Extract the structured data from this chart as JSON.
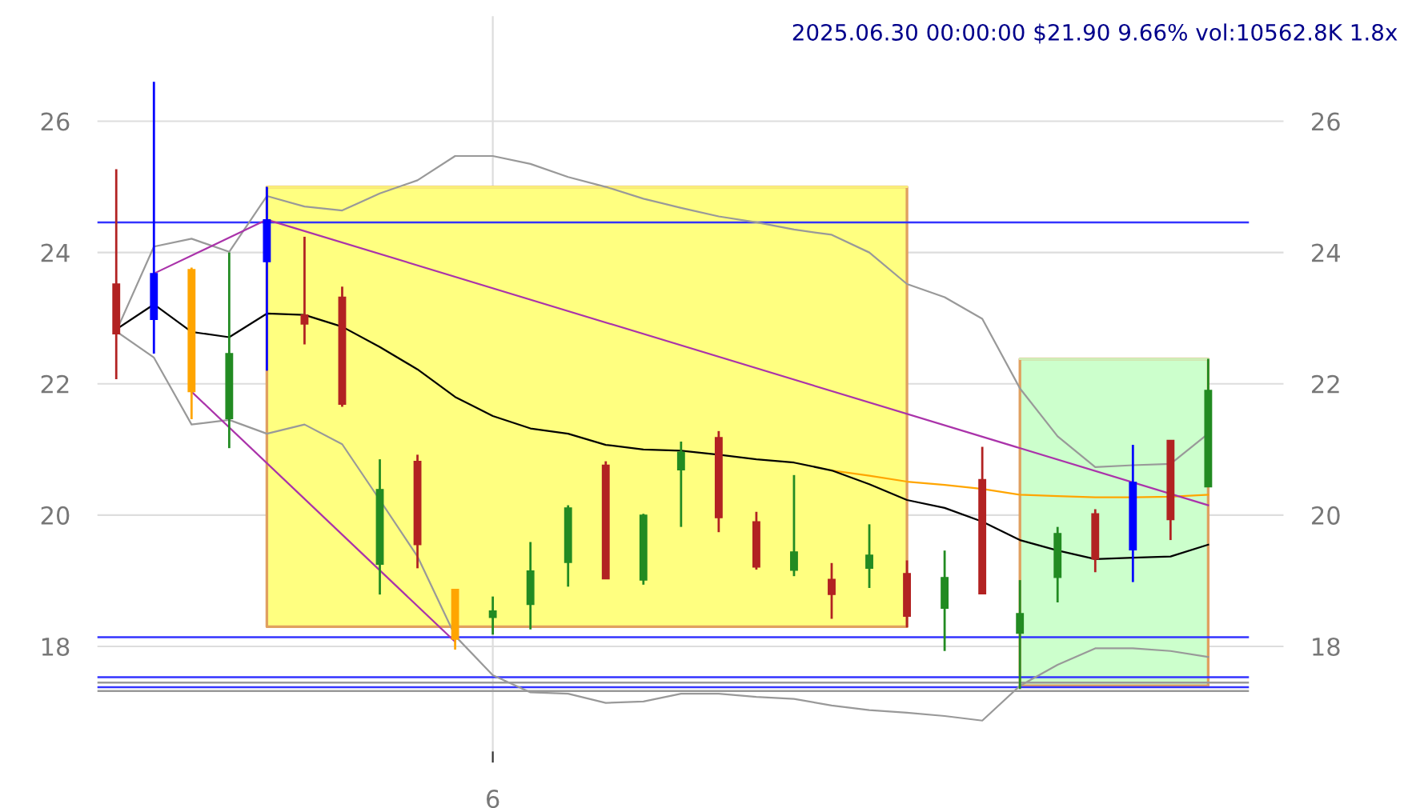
{
  "chart_data": {
    "type": "candlestick",
    "title": "2025.06.30 00:00:00 $21.90 9.66% vol:10562.8K 1.8x",
    "categories": [
      null,
      null,
      null,
      null,
      null,
      null,
      null,
      null,
      null,
      null,
      "6",
      null,
      null,
      null,
      null,
      null,
      null,
      null,
      null,
      null,
      null,
      null,
      null,
      null,
      null,
      null,
      null,
      null,
      null,
      null
    ],
    "ohlc": [
      [
        23.52,
        25.27,
        22.07,
        22.76
      ],
      [
        22.98,
        26.6,
        22.46,
        23.68
      ],
      [
        23.74,
        23.77,
        21.46,
        21.88
      ],
      [
        21.47,
        24.0,
        21.02,
        22.46
      ],
      [
        23.86,
        25.0,
        22.2,
        24.5
      ],
      [
        23.05,
        24.24,
        22.6,
        22.91
      ],
      [
        23.32,
        23.48,
        21.65,
        21.69
      ],
      [
        19.25,
        20.85,
        18.79,
        20.39
      ],
      [
        20.82,
        20.92,
        19.19,
        19.55
      ],
      [
        18.87,
        18.87,
        17.95,
        18.11
      ],
      [
        18.44,
        18.76,
        18.18,
        18.54
      ],
      [
        18.64,
        19.59,
        18.26,
        19.15
      ],
      [
        19.28,
        20.15,
        18.91,
        20.11
      ],
      [
        20.76,
        20.82,
        19.03,
        19.03
      ],
      [
        19.01,
        20.02,
        18.94,
        20.0
      ],
      [
        20.69,
        21.12,
        19.82,
        20.96
      ],
      [
        21.18,
        21.28,
        19.74,
        19.96
      ],
      [
        19.9,
        20.05,
        19.17,
        19.21
      ],
      [
        19.16,
        20.61,
        19.07,
        19.44
      ],
      [
        19.02,
        19.27,
        18.42,
        18.79
      ],
      [
        19.19,
        19.86,
        18.89,
        19.39
      ],
      [
        19.11,
        19.31,
        18.29,
        18.46
      ],
      [
        18.58,
        19.46,
        17.93,
        19.05
      ],
      [
        20.54,
        21.04,
        18.8,
        18.8
      ],
      [
        18.2,
        19.01,
        17.35,
        18.5
      ],
      [
        19.05,
        19.82,
        18.67,
        19.72
      ],
      [
        20.02,
        20.09,
        19.13,
        19.33
      ],
      [
        19.47,
        21.07,
        18.98,
        20.5
      ],
      [
        21.14,
        21.14,
        19.62,
        19.93
      ],
      [
        20.43,
        22.38,
        20.43,
        21.9
      ]
    ],
    "colors": [
      "#b22222",
      "#0000ff",
      "#ffa500",
      "#228b22",
      "#0000ff",
      "#b22222",
      "#b22222",
      "#228b22",
      "#b22222",
      "#ffa500",
      "#228b22",
      "#228b22",
      "#228b22",
      "#b22222",
      "#228b22",
      "#228b22",
      "#b22222",
      "#b22222",
      "#228b22",
      "#b22222",
      "#228b22",
      "#b22222",
      "#228b22",
      "#b22222",
      "#228b22",
      "#228b22",
      "#b22222",
      "#0000ff",
      "#b22222",
      "#228b22"
    ],
    "series": [
      {
        "type": "line",
        "color": "#ffff80",
        "values": [
          null,
          null,
          null,
          null,
          25.0,
          25.0,
          25.0,
          25.0,
          25.0,
          25.0,
          25.0,
          25.0,
          25.0,
          25.0,
          25.0,
          25.0,
          25.0,
          25.0,
          25.0,
          25.0,
          25.0,
          25.0,
          null,
          null,
          null,
          null,
          null,
          null,
          null,
          null
        ],
        "upper": [
          null,
          null,
          null,
          null,
          25.0,
          25.0,
          25.0,
          25.0,
          25.0,
          25.0,
          25.0,
          25.0,
          25.0,
          25.0,
          25.0,
          25.0,
          25.0,
          25.0,
          25.0,
          25.0,
          25.0,
          25.0,
          null,
          null,
          null,
          null,
          null,
          null,
          null,
          null
        ],
        "lower": [
          null,
          null,
          null,
          null,
          18.3,
          18.3,
          18.3,
          18.3,
          18.3,
          18.3,
          18.3,
          18.3,
          18.3,
          18.3,
          18.3,
          18.3,
          18.3,
          18.3,
          18.3,
          18.3,
          18.3,
          18.3,
          null,
          null,
          null,
          null,
          null,
          null,
          null,
          null
        ]
      },
      {
        "type": "line",
        "color": "#ccffcc",
        "values": [
          null,
          null,
          null,
          null,
          null,
          null,
          null,
          null,
          null,
          null,
          null,
          null,
          null,
          null,
          null,
          null,
          null,
          null,
          null,
          null,
          null,
          null,
          null,
          null,
          22.38,
          22.38,
          22.38,
          22.38,
          22.38,
          22.38
        ],
        "upper": [
          null,
          null,
          null,
          null,
          null,
          null,
          null,
          null,
          null,
          null,
          null,
          null,
          null,
          null,
          null,
          null,
          null,
          null,
          null,
          null,
          null,
          null,
          null,
          null,
          22.38,
          22.38,
          22.38,
          22.38,
          22.38,
          22.38
        ],
        "lower": [
          null,
          null,
          null,
          null,
          null,
          null,
          null,
          null,
          null,
          null,
          null,
          null,
          null,
          null,
          null,
          null,
          null,
          null,
          null,
          null,
          null,
          null,
          null,
          null,
          17.4,
          17.4,
          17.4,
          17.4,
          17.4,
          17.4
        ]
      },
      {
        "type": "line",
        "color": "#999999",
        "values": [
          22.8,
          24.09,
          24.21,
          24.01,
          24.86,
          24.7,
          24.64,
          24.9,
          25.1,
          25.47,
          25.47,
          25.35,
          25.15,
          25.0,
          24.82,
          24.68,
          24.55,
          24.46,
          24.35,
          24.27,
          24.0,
          23.52,
          23.32,
          22.99,
          21.93,
          21.2,
          20.73,
          20.76,
          20.78,
          21.24
        ]
      },
      {
        "type": "line",
        "color": "#999999",
        "values": [
          22.8,
          22.4,
          21.38,
          21.45,
          21.24,
          21.38,
          21.08,
          20.23,
          19.37,
          18.16,
          17.56,
          17.3,
          17.28,
          17.14,
          17.16,
          17.28,
          17.28,
          17.23,
          17.2,
          17.1,
          17.03,
          16.99,
          16.94,
          16.87,
          17.4,
          17.72,
          17.97,
          17.97,
          17.93,
          17.84
        ]
      },
      {
        "type": "line",
        "color": "#ffa500",
        "values": [
          null,
          null,
          null,
          null,
          null,
          null,
          null,
          null,
          null,
          null,
          null,
          null,
          null,
          null,
          null,
          null,
          null,
          null,
          null,
          20.68,
          20.6,
          20.51,
          20.46,
          20.4,
          20.31,
          20.29,
          20.27,
          20.27,
          20.28,
          20.31
        ]
      },
      {
        "type": "line",
        "color": "#000000",
        "values": [
          22.83,
          23.21,
          22.79,
          22.71,
          23.07,
          23.05,
          22.87,
          22.56,
          22.22,
          21.8,
          21.51,
          21.32,
          21.24,
          21.07,
          21.0,
          20.98,
          20.92,
          20.85,
          20.8,
          20.68,
          20.47,
          20.23,
          20.11,
          19.9,
          19.62,
          19.46,
          19.33,
          19.35,
          19.37,
          19.55
        ]
      },
      {
        "type": "line",
        "color": "#aa33aa",
        "values": [
          null,
          23.68,
          null,
          null,
          24.5,
          null,
          null,
          null,
          null,
          null,
          null,
          null,
          null,
          null,
          null,
          null,
          null,
          null,
          null,
          null,
          null,
          null,
          null,
          null,
          null,
          null,
          null,
          null,
          null,
          20.15
        ]
      },
      {
        "type": "line",
        "color": "#aa33aa",
        "values": [
          null,
          null,
          21.88,
          null,
          null,
          null,
          null,
          null,
          null,
          18.07,
          null,
          null,
          null,
          null,
          null,
          null,
          null,
          null,
          null,
          null,
          null,
          null,
          null,
          null,
          null,
          null,
          null,
          null,
          null,
          null
        ]
      }
    ],
    "ref_lines": [
      {
        "axis": "y",
        "value": 24.46,
        "color": "#3333ff"
      },
      {
        "axis": "y",
        "value": 18.14,
        "color": "#3333ff"
      },
      {
        "axis": "y",
        "value": 17.53,
        "color": "#3333ff"
      },
      {
        "axis": "y",
        "value": 17.45,
        "color": "#999999"
      },
      {
        "axis": "y",
        "value": 17.38,
        "color": "#3333ff"
      },
      {
        "axis": "y",
        "value": 17.32,
        "color": "#999999"
      }
    ],
    "ylim": [
      16.4,
      27.6
    ],
    "yticks": [
      18,
      20,
      22,
      24,
      26
    ],
    "y2lim": [
      16.4,
      27.6
    ],
    "y2ticks": [
      18,
      20,
      22,
      24,
      26
    ],
    "grid": true
  }
}
